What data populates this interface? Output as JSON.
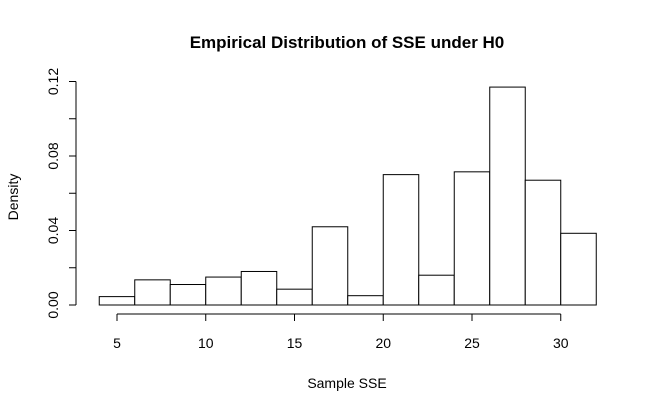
{
  "chart_data": {
    "type": "bar",
    "title": "Empirical Distribution of SSE under H0",
    "xlabel": "Sample SSE",
    "ylabel": "Density",
    "bins": [
      {
        "x0": 4,
        "x1": 6,
        "density": 0.0045
      },
      {
        "x0": 6,
        "x1": 8,
        "density": 0.0135
      },
      {
        "x0": 8,
        "x1": 10,
        "density": 0.011
      },
      {
        "x0": 10,
        "x1": 12,
        "density": 0.015
      },
      {
        "x0": 12,
        "x1": 14,
        "density": 0.018
      },
      {
        "x0": 14,
        "x1": 16,
        "density": 0.0085
      },
      {
        "x0": 16,
        "x1": 18,
        "density": 0.042
      },
      {
        "x0": 18,
        "x1": 20,
        "density": 0.005
      },
      {
        "x0": 20,
        "x1": 22,
        "density": 0.07
      },
      {
        "x0": 22,
        "x1": 24,
        "density": 0.016
      },
      {
        "x0": 24,
        "x1": 26,
        "density": 0.0715
      },
      {
        "x0": 26,
        "x1": 28,
        "density": 0.117
      },
      {
        "x0": 28,
        "x1": 30,
        "density": 0.067
      },
      {
        "x0": 30,
        "x1": 32,
        "density": 0.0385
      }
    ],
    "xticks": [
      "5",
      "10",
      "15",
      "20",
      "25",
      "30"
    ],
    "yticks": [
      "0.00",
      "0.04",
      "0.08",
      "0.12"
    ],
    "xlim": [
      5,
      30
    ],
    "ylim": [
      0,
      0.12
    ],
    "grid": false,
    "legend": "none"
  }
}
